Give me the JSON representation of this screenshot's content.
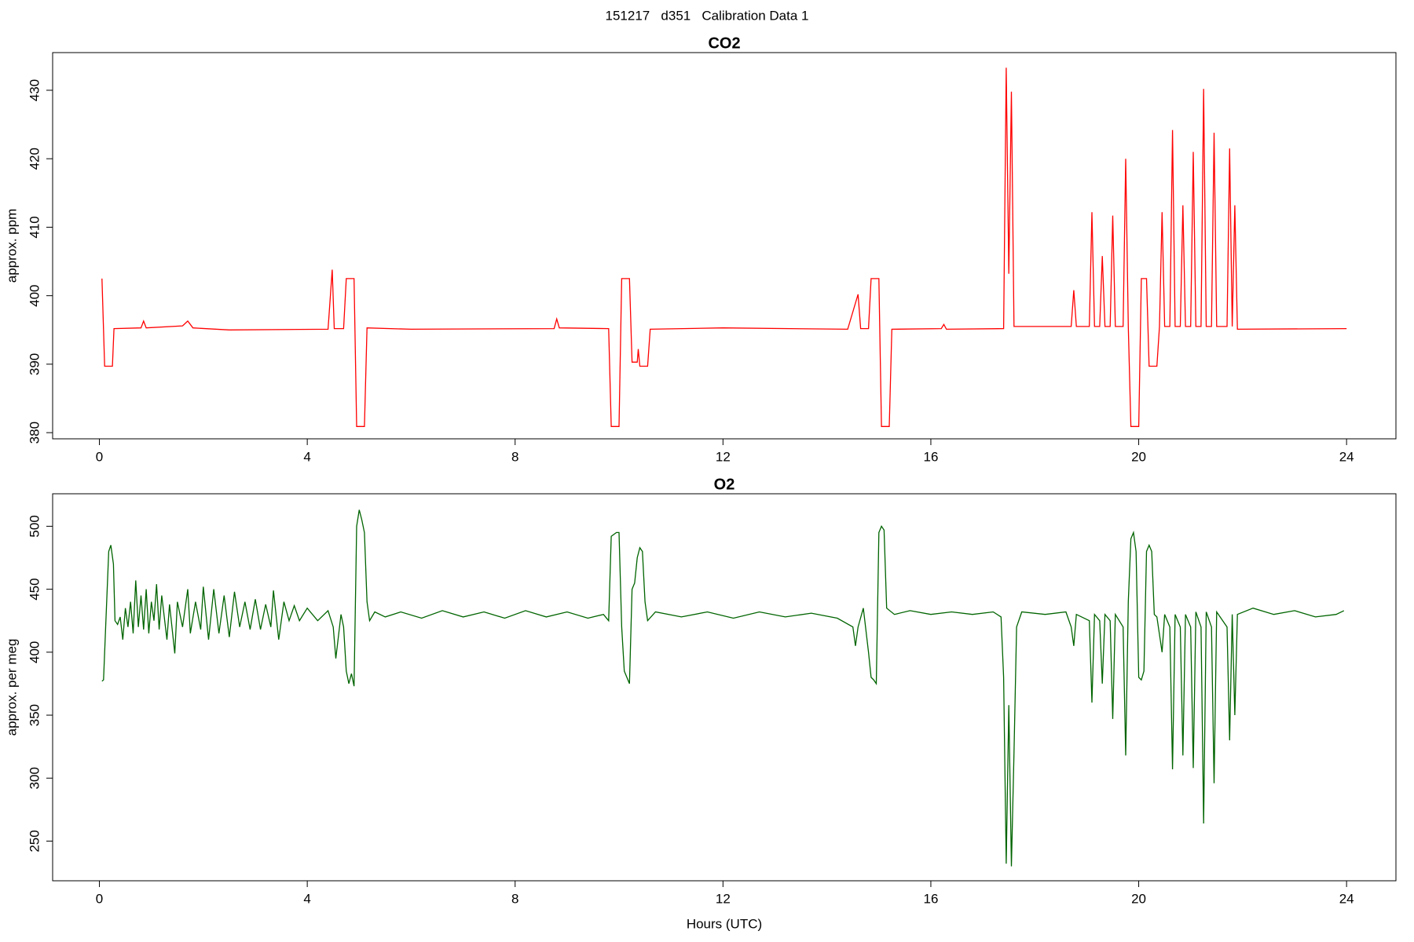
{
  "title": "151217   d351   Calibration Data 1",
  "chart_data": [
    {
      "type": "line",
      "title": "CO2",
      "ylabel": "approx. ppm",
      "color": "#ff0000",
      "xlim": [
        -0.9,
        24.95
      ],
      "xticks": [
        0,
        4,
        8,
        12,
        16,
        20,
        24
      ],
      "ylim": [
        379.1,
        435.5
      ],
      "yticks": [
        380,
        390,
        400,
        410,
        420,
        430
      ],
      "x": [
        0.05,
        0.1,
        0.25,
        0.28,
        0.8,
        0.85,
        0.9,
        1.6,
        1.7,
        1.8,
        2.5,
        4.4,
        4.48,
        4.52,
        4.7,
        4.75,
        4.9,
        4.95,
        5.1,
        5.15,
        6,
        8.75,
        8.8,
        8.85,
        9.8,
        9.85,
        10.0,
        10.05,
        10.2,
        10.25,
        10.35,
        10.37,
        10.4,
        10.55,
        10.6,
        12,
        14.4,
        14.6,
        14.65,
        14.8,
        14.85,
        15,
        15.05,
        15.2,
        15.25,
        16.2,
        16.25,
        16.3,
        17.4,
        17.45,
        17.5,
        17.55,
        17.6,
        18.7,
        18.75,
        18.8,
        19.05,
        19.1,
        19.15,
        19.25,
        19.3,
        19.35,
        19.45,
        19.5,
        19.55,
        19.7,
        19.75,
        19.8,
        19.85,
        20.0,
        20.05,
        20.15,
        20.2,
        20.35,
        20.4,
        20.45,
        20.5,
        20.6,
        20.65,
        20.7,
        20.8,
        20.85,
        20.9,
        21.0,
        21.05,
        21.1,
        21.2,
        21.25,
        21.3,
        21.4,
        21.45,
        21.5,
        21.7,
        21.75,
        21.8,
        21.85,
        21.9,
        24
      ],
      "values": [
        402.5,
        389.7,
        389.7,
        395.2,
        395.3,
        396.3,
        395.3,
        395.6,
        396.3,
        395.3,
        395.0,
        395.1,
        403.8,
        395.2,
        395.2,
        402.5,
        402.5,
        380.9,
        380.9,
        395.3,
        395.1,
        395.2,
        396.6,
        395.3,
        395.2,
        380.9,
        380.9,
        402.5,
        402.5,
        390.3,
        390.3,
        392.2,
        389.7,
        389.7,
        395.1,
        395.3,
        395.1,
        400.2,
        395.2,
        395.2,
        402.5,
        402.5,
        380.9,
        380.9,
        395.1,
        395.2,
        395.8,
        395.1,
        395.2,
        433.3,
        403.2,
        429.8,
        395.5,
        395.5,
        400.8,
        395.5,
        395.5,
        412.2,
        395.5,
        395.5,
        405.8,
        395.5,
        395.5,
        411.7,
        395.5,
        395.5,
        420,
        395.5,
        380.9,
        380.9,
        402.5,
        402.5,
        389.7,
        389.7,
        395.5,
        412.2,
        395.5,
        395.5,
        424.2,
        395.5,
        395.5,
        413.2,
        395.5,
        395.5,
        421,
        395.5,
        395.5,
        430.2,
        395.5,
        395.5,
        423.8,
        395.5,
        395.5,
        421.5,
        395.5,
        413.2,
        395.1,
        395.2
      ]
    },
    {
      "type": "line",
      "title": "O2",
      "ylabel": "approx. per meg",
      "xlabel": "Hours (UTC)",
      "color": "#006400",
      "xlim": [
        -0.9,
        24.95
      ],
      "xticks": [
        0,
        4,
        8,
        12,
        16,
        20,
        24
      ],
      "ylim": [
        218.5,
        525.8
      ],
      "yticks": [
        250,
        300,
        350,
        400,
        450,
        500
      ],
      "x": [
        0.05,
        0.08,
        0.12,
        0.18,
        0.22,
        0.27,
        0.3,
        0.35,
        0.4,
        0.45,
        0.5,
        0.55,
        0.6,
        0.65,
        0.7,
        0.75,
        0.8,
        0.85,
        0.9,
        0.95,
        1.0,
        1.05,
        1.1,
        1.15,
        1.2,
        1.3,
        1.35,
        1.45,
        1.5,
        1.6,
        1.7,
        1.75,
        1.85,
        1.95,
        2.0,
        2.1,
        2.2,
        2.3,
        2.4,
        2.5,
        2.6,
        2.7,
        2.8,
        2.9,
        3.0,
        3.1,
        3.2,
        3.3,
        3.35,
        3.45,
        3.55,
        3.65,
        3.75,
        3.85,
        4.0,
        4.2,
        4.4,
        4.5,
        4.55,
        4.65,
        4.7,
        4.75,
        4.8,
        4.85,
        4.9,
        4.95,
        5.0,
        5.05,
        5.1,
        5.15,
        5.2,
        5.3,
        5.5,
        5.8,
        6.2,
        6.6,
        7.0,
        7.4,
        7.8,
        8.2,
        8.6,
        9.0,
        9.4,
        9.7,
        9.8,
        9.85,
        9.95,
        10.0,
        10.05,
        10.1,
        10.15,
        10.2,
        10.25,
        10.3,
        10.35,
        10.4,
        10.45,
        10.5,
        10.55,
        10.7,
        11.2,
        11.7,
        12.2,
        12.7,
        13.2,
        13.7,
        14.2,
        14.5,
        14.55,
        14.6,
        14.7,
        14.8,
        14.85,
        14.9,
        14.95,
        15.0,
        15.05,
        15.1,
        15.15,
        15.3,
        15.6,
        16.0,
        16.4,
        16.8,
        17.2,
        17.35,
        17.4,
        17.45,
        17.5,
        17.55,
        17.6,
        17.65,
        17.75,
        18.2,
        18.6,
        18.7,
        18.75,
        18.8,
        19.05,
        19.1,
        19.15,
        19.25,
        19.3,
        19.35,
        19.45,
        19.5,
        19.55,
        19.7,
        19.75,
        19.8,
        19.85,
        19.9,
        19.95,
        20.0,
        20.05,
        20.1,
        20.15,
        20.2,
        20.25,
        20.3,
        20.35,
        20.45,
        20.5,
        20.6,
        20.65,
        20.7,
        20.8,
        20.85,
        20.9,
        21.0,
        21.05,
        21.1,
        21.2,
        21.25,
        21.3,
        21.4,
        21.45,
        21.5,
        21.7,
        21.75,
        21.8,
        21.85,
        21.9,
        22.2,
        22.6,
        23.0,
        23.4,
        23.8,
        23.95
      ],
      "values": [
        377,
        378,
        420,
        480,
        485,
        470,
        425,
        422,
        428,
        410,
        435,
        420,
        440,
        415,
        457,
        420,
        445,
        418,
        450,
        415,
        440,
        425,
        454,
        418,
        445,
        410,
        438,
        399,
        440,
        420,
        450,
        415,
        440,
        418,
        452,
        410,
        450,
        415,
        445,
        412,
        448,
        420,
        440,
        418,
        442,
        418,
        438,
        420,
        449,
        410,
        440,
        425,
        437,
        425,
        435,
        425,
        433,
        420,
        395,
        430,
        420,
        385,
        375,
        383,
        373,
        500,
        513,
        505,
        495,
        440,
        425,
        432,
        428,
        432,
        427,
        433,
        428,
        432,
        427,
        433,
        428,
        432,
        427,
        430,
        425,
        492,
        495,
        495,
        420,
        385,
        380,
        375,
        450,
        455,
        475,
        483,
        480,
        440,
        425,
        432,
        428,
        432,
        427,
        432,
        428,
        431,
        427,
        420,
        405,
        420,
        435,
        400,
        380,
        378,
        375,
        495,
        500,
        497,
        435,
        430,
        433,
        430,
        432,
        430,
        432,
        428,
        380,
        232,
        358,
        230,
        320,
        420,
        432,
        430,
        432,
        420,
        405,
        430,
        425,
        360,
        430,
        425,
        375,
        430,
        425,
        347,
        430,
        420,
        318,
        440,
        490,
        495,
        480,
        380,
        378,
        385,
        480,
        485,
        480,
        430,
        428,
        400,
        430,
        420,
        307,
        430,
        420,
        318,
        430,
        420,
        308,
        432,
        420,
        264,
        432,
        420,
        296,
        432,
        420,
        330,
        430,
        350,
        430,
        435,
        430,
        433,
        428,
        430,
        433
      ]
    }
  ]
}
